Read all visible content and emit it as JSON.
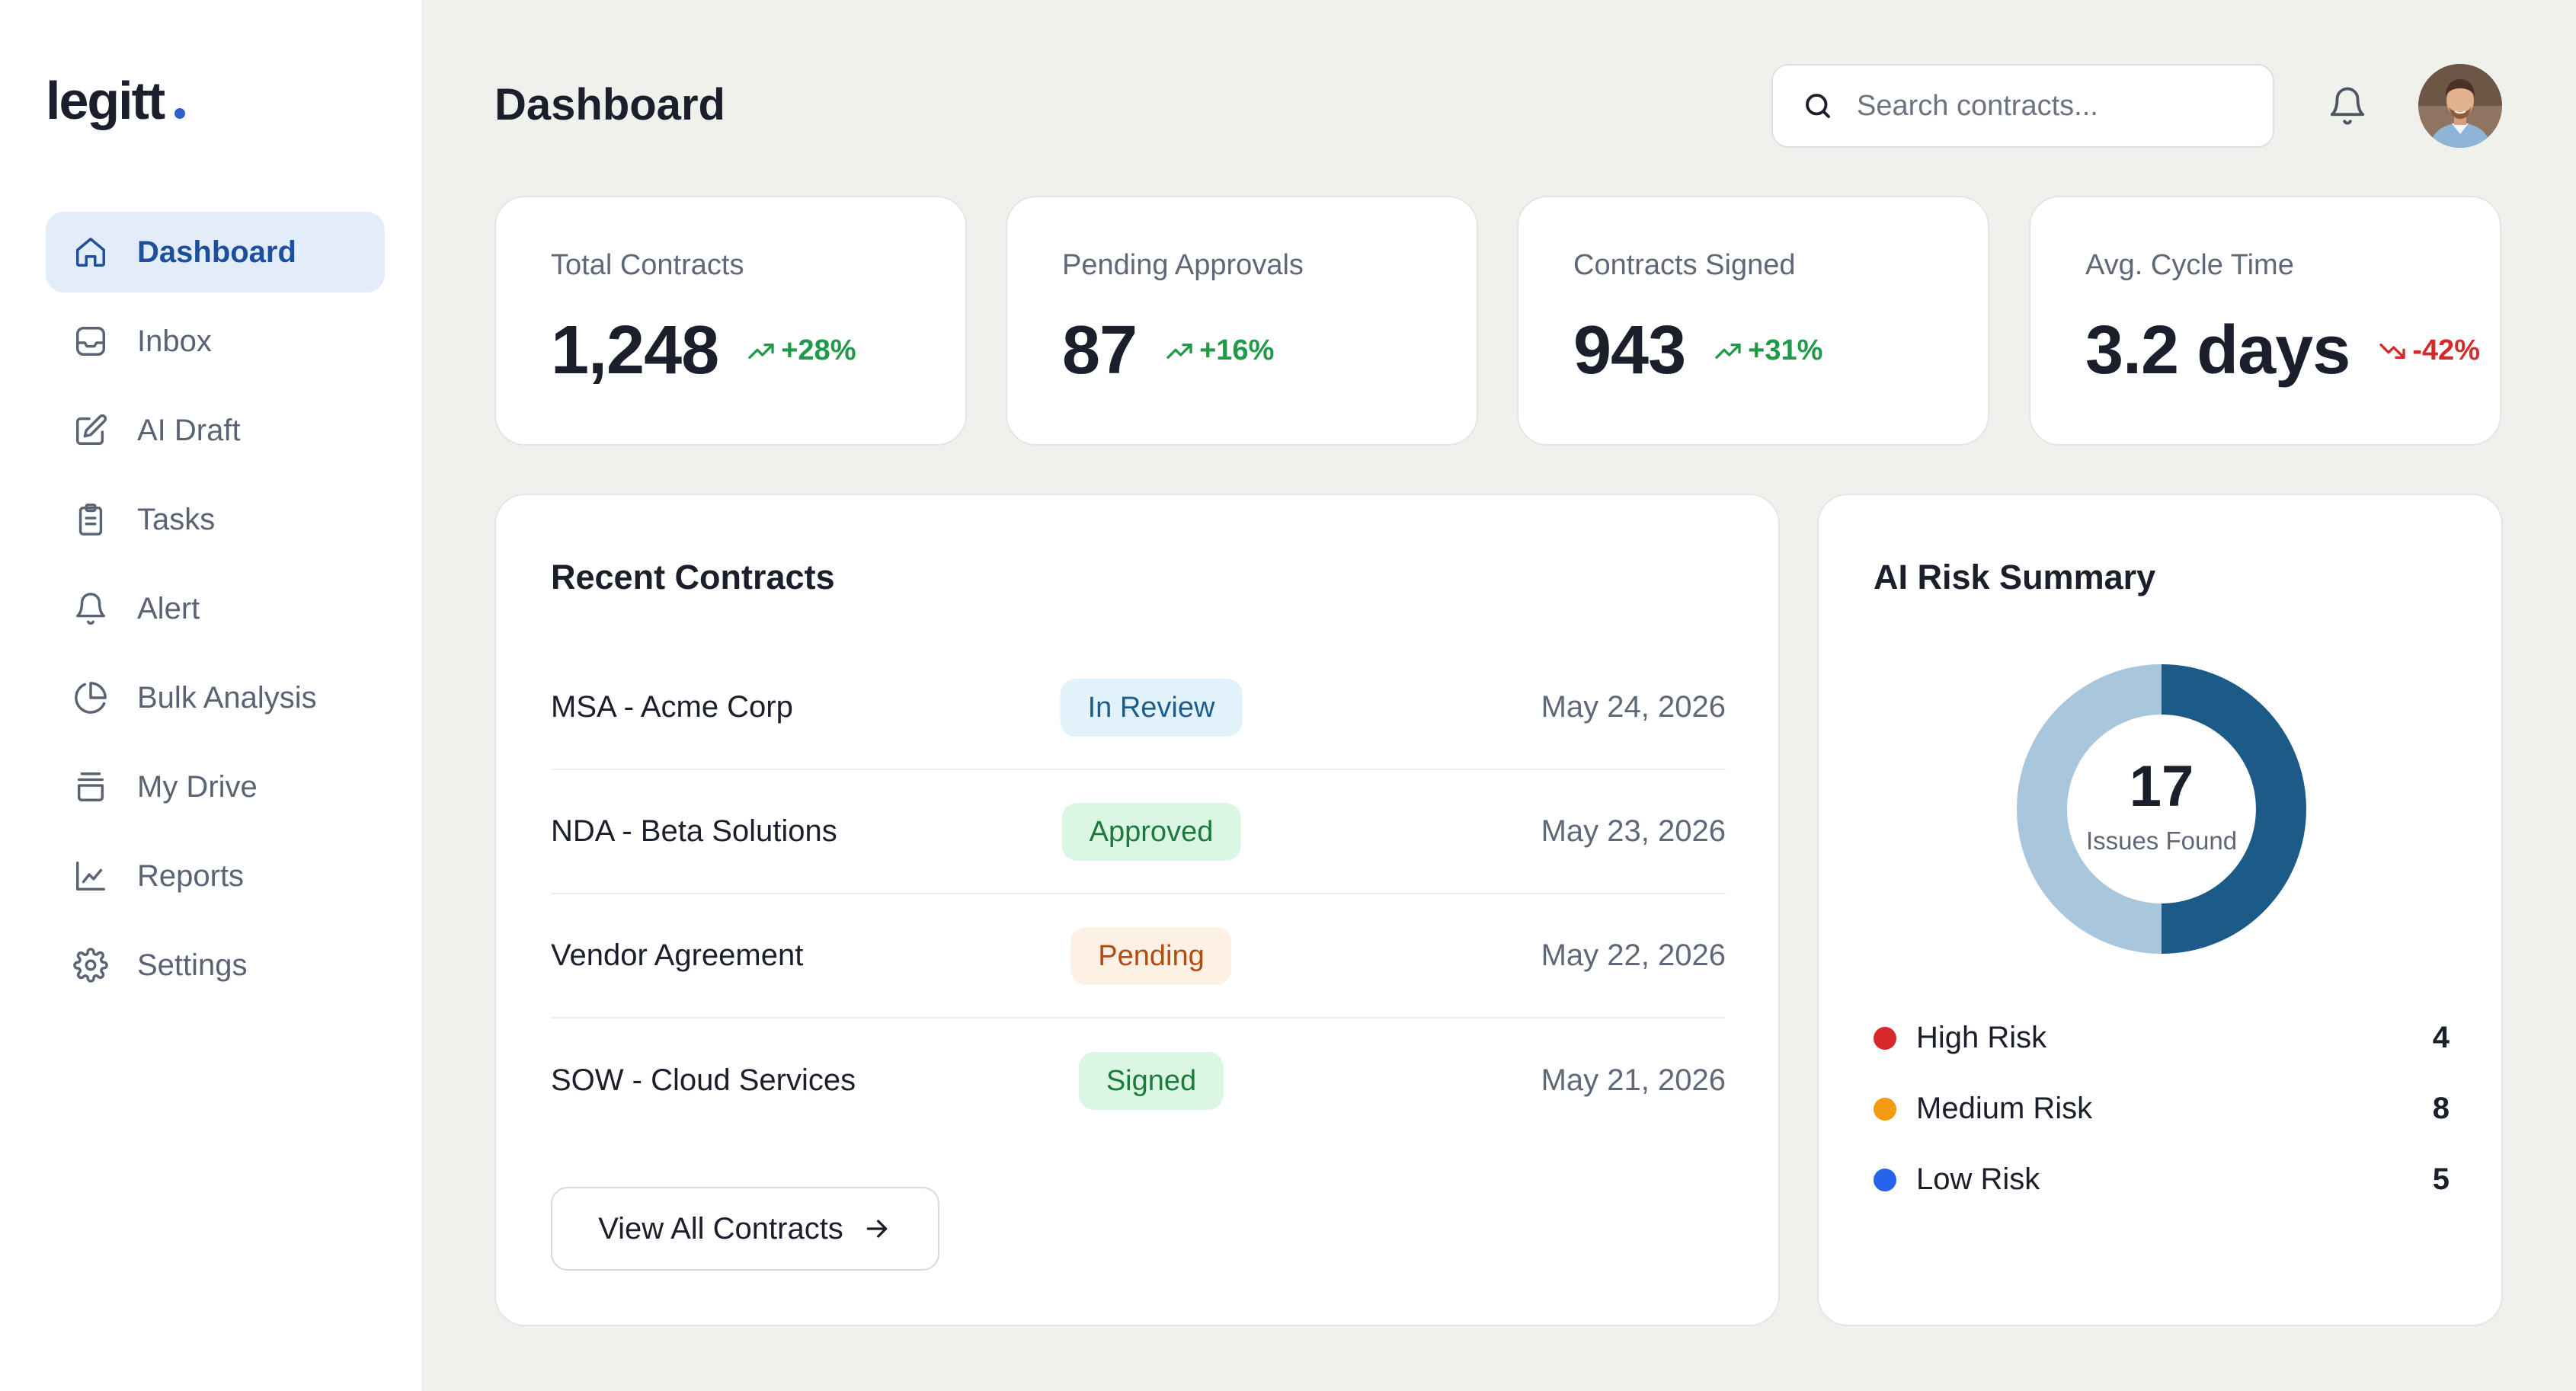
{
  "brand": {
    "name": "legitt",
    "accent": "#2b61c9"
  },
  "sidebar": {
    "items": [
      {
        "label": "Dashboard",
        "icon": "home-icon",
        "active": true
      },
      {
        "label": "Inbox",
        "icon": "inbox-icon"
      },
      {
        "label": "AI Draft",
        "icon": "pencil-square-icon"
      },
      {
        "label": "Tasks",
        "icon": "clipboard-icon"
      },
      {
        "label": "Alert",
        "icon": "bell-icon"
      },
      {
        "label": "Bulk Analysis",
        "icon": "pie-chart-icon"
      },
      {
        "label": "My Drive",
        "icon": "drive-icon"
      },
      {
        "label": "Reports",
        "icon": "line-chart-icon"
      },
      {
        "label": "Settings",
        "icon": "gear-icon"
      }
    ]
  },
  "header": {
    "title": "Dashboard",
    "search": {
      "placeholder": "Search contracts...",
      "value": ""
    },
    "notification_icon": "bell-icon",
    "avatar_icon": "user-avatar"
  },
  "stats": [
    {
      "label": "Total Contracts",
      "value": "1,248",
      "trend": "+28%",
      "direction": "up"
    },
    {
      "label": "Pending Approvals",
      "value": "87",
      "trend": "+16%",
      "direction": "up"
    },
    {
      "label": "Contracts Signed",
      "value": "943",
      "trend": "+31%",
      "direction": "up"
    },
    {
      "label": "Avg. Cycle Time",
      "value": "3.2 days",
      "trend": "-42%",
      "direction": "down"
    }
  ],
  "recent_contracts": {
    "title": "Recent Contracts",
    "rows": [
      {
        "name": "MSA - Acme Corp",
        "status": "In Review",
        "date": "May 24, 2026"
      },
      {
        "name": "NDA - Beta Solutions",
        "status": "Approved",
        "date": "May 23, 2026"
      },
      {
        "name": "Vendor Agreement",
        "status": "Pending",
        "date": "May 22, 2026"
      },
      {
        "name": "SOW - Cloud Services",
        "status": "Signed",
        "date": "May 21, 2026"
      }
    ],
    "view_all_label": "View All Contracts"
  },
  "risk_summary": {
    "title": "AI Risk Summary",
    "total": "17",
    "caption": "Issues Found",
    "ring_colors": {
      "dark": "#1c5a88",
      "light": "#a8c6dc"
    },
    "items": [
      {
        "label": "High Risk",
        "count": "4",
        "color": "#d62828"
      },
      {
        "label": "Medium Risk",
        "count": "8",
        "color": "#f29a12"
      },
      {
        "label": "Low Risk",
        "count": "5",
        "color": "#2563eb"
      }
    ]
  },
  "colors": {
    "up": "#1e9a48",
    "down": "#d22b2b",
    "active_nav_bg": "#e3ecf9",
    "active_nav_text": "#1d4f9c"
  }
}
